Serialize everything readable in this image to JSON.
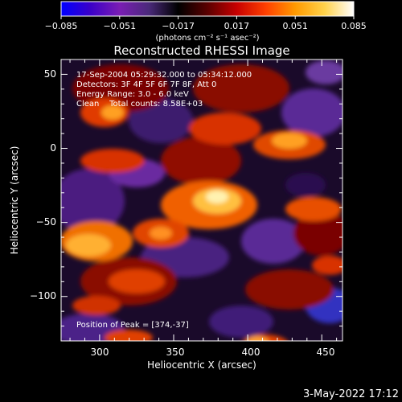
{
  "colorbar": {
    "tick_labels": [
      "−0.085",
      "−0.051",
      "−0.017",
      "0.017",
      "0.051",
      "0.085"
    ],
    "unit_label": "(photons cm⁻² s⁻¹ asec⁻²)",
    "gradient_colors": [
      "#0000ff",
      "#3b00c8",
      "#7a1db4",
      "#4a2a7a",
      "#000000",
      "#5a0000",
      "#c80000",
      "#ff4000",
      "#ff9a00",
      "#ffd24a",
      "#ffffff"
    ]
  },
  "image": {
    "title": "Reconstructed RHESSI Image",
    "annotations": [
      "17-Sep-2004 05:29:32.000 to 05:34:12.000",
      "Detectors: 3F 4F 5F 6F 7F 8F, Att 0",
      "Energy Range: 3.0 - 6.0 keV",
      "Clean    Total counts: 8.58E+03"
    ],
    "peak_label": "Position of Peak = [374,-37]",
    "x_tick_labels": [
      "300",
      "350",
      "400",
      "450"
    ],
    "y_tick_labels": [
      "50",
      "0",
      "−50",
      "−100"
    ],
    "xlabel": "Heliocentric X (arcsec)",
    "ylabel": "Heliocentric Y (arcsec)"
  },
  "footer": {
    "timestamp": "3-May-2022 17:12"
  }
}
